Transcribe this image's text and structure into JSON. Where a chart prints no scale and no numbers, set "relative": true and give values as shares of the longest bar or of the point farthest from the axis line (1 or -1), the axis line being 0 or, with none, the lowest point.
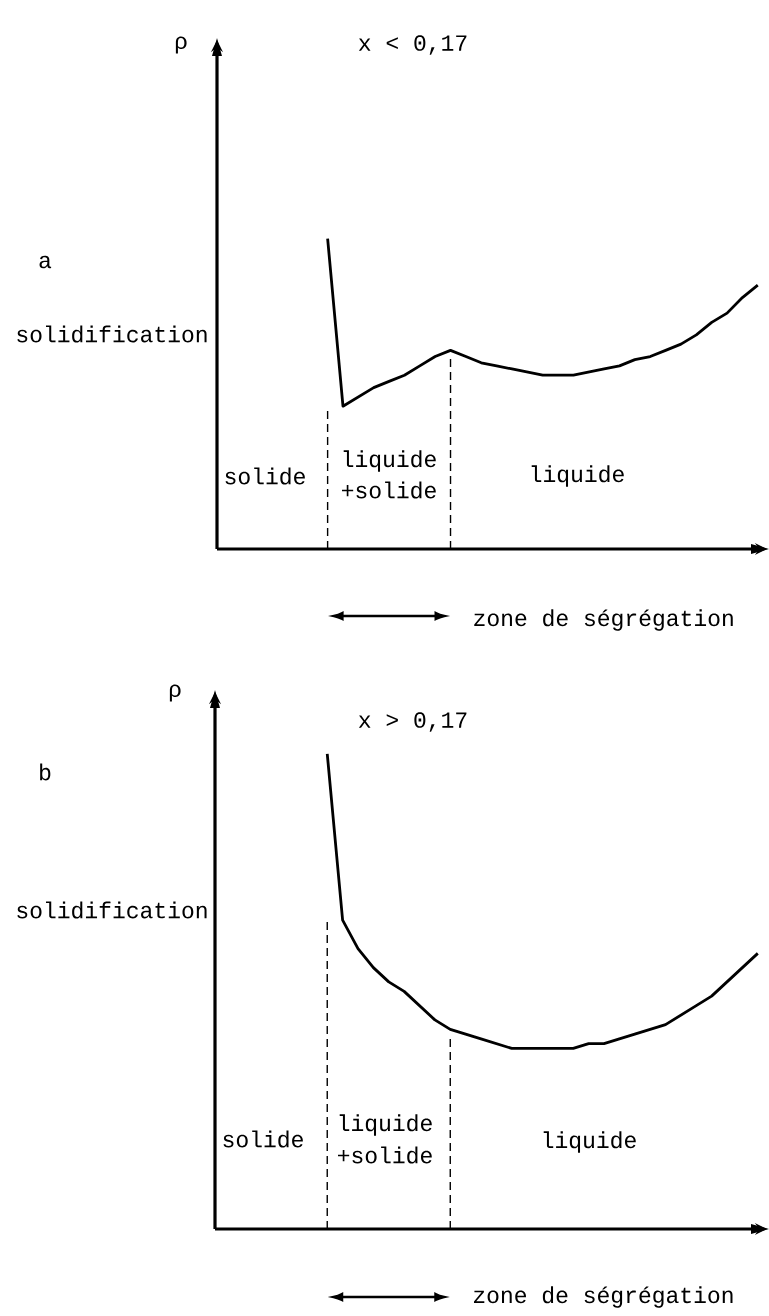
{
  "chart_data": [
    {
      "type": "line",
      "title": "x < 0,17",
      "ylabel": "ρ",
      "relative": true,
      "color": "#000000",
      "categories": [
        null,
        null,
        null,
        null,
        null,
        null,
        null,
        null,
        null,
        null,
        null,
        null,
        null,
        null,
        null,
        null,
        null,
        null,
        null,
        null,
        null,
        null,
        null,
        null,
        null,
        null,
        null,
        null,
        null
      ],
      "values": [
        1.0,
        0.46,
        0.49,
        0.52,
        0.54,
        0.56,
        0.59,
        0.62,
        0.64,
        0.62,
        0.6,
        0.59,
        0.58,
        0.57,
        0.56,
        0.56,
        0.56,
        0.57,
        0.58,
        0.59,
        0.61,
        0.62,
        0.64,
        0.66,
        0.69,
        0.73,
        0.76,
        0.81,
        0.85
      ],
      "annotations": [
        "a",
        "solidification",
        "solide",
        "liquide",
        "+solide",
        "liquide",
        "zone de ségrégation"
      ]
    },
    {
      "type": "line",
      "title": "x > 0,17",
      "ylabel": "ρ",
      "relative": true,
      "color": "#000000",
      "categories": [
        null,
        null,
        null,
        null,
        null,
        null,
        null,
        null,
        null,
        null,
        null,
        null,
        null,
        null,
        null,
        null,
        null,
        null,
        null,
        null,
        null,
        null,
        null,
        null,
        null,
        null,
        null,
        null,
        null
      ],
      "values": [
        1.0,
        0.65,
        0.59,
        0.55,
        0.52,
        0.5,
        0.47,
        0.44,
        0.42,
        0.41,
        0.4,
        0.39,
        0.38,
        0.38,
        0.38,
        0.38,
        0.38,
        0.39,
        0.39,
        0.4,
        0.41,
        0.42,
        0.43,
        0.45,
        0.47,
        0.49,
        0.52,
        0.55,
        0.58
      ],
      "annotations": [
        "b",
        "solidification",
        "solide",
        "liquide",
        "+solide",
        "liquide",
        "zone de ségrégation"
      ]
    }
  ]
}
